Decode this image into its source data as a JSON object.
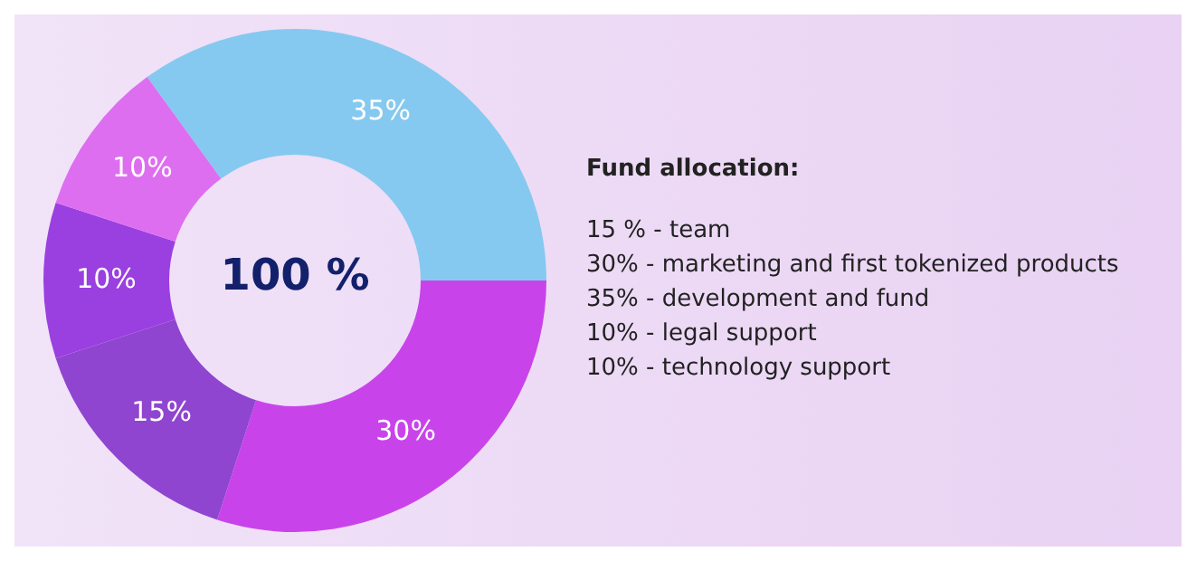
{
  "chart_data": {
    "type": "donut",
    "title": "Fund allocation:",
    "categories": [
      null,
      null,
      null,
      null,
      null
    ],
    "values": [
      35,
      30,
      15,
      10,
      10
    ],
    "colors": [
      "#85c9f0",
      "#c844ea",
      "#8f45cf",
      "#9a3fe0",
      "#de6ef0"
    ],
    "value_labels": [
      "35%",
      "30%",
      "15%",
      "10%",
      "10%"
    ],
    "annotations": [
      "100 %",
      "15 % - team",
      "30% - marketing and first tokenized products",
      "35% - development and fund",
      "10% - legal support",
      "10% - technology support"
    ]
  }
}
